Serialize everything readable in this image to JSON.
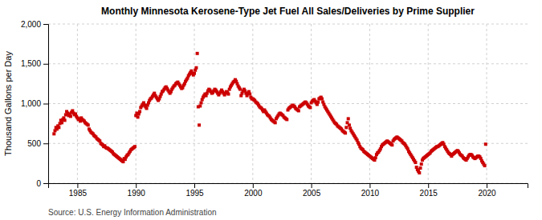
{
  "chart_data": {
    "type": "scatter",
    "title": "Monthly Minnesota Kerosene-Type Jet Fuel All Sales/Deliveries by Prime Supplier",
    "ylabel": "Thousand Gallons per Day",
    "source": "Source: U.S. Energy Information Administration",
    "color": "#cc0000",
    "marker": "square",
    "grid": true,
    "ylim": [
      0,
      2000
    ],
    "yticks": [
      0,
      500,
      {
        "value": 1000,
        "label": "1,000"
      },
      {
        "value": 1500,
        "label": "1,500"
      },
      {
        "value": 2000,
        "label": "2,000"
      }
    ],
    "xlim": [
      1982.5,
      2023.5
    ],
    "xticks": [
      1985,
      1990,
      1995,
      2000,
      2005,
      2010,
      2015,
      2020
    ],
    "x": [
      1983,
      1983.0833333333333,
      1983.1666666666667,
      1983.25,
      1983.3333333333333,
      1983.4166666666667,
      1983.5,
      1983.5833333333333,
      1983.6666666666667,
      1983.75,
      1983.8333333333333,
      1983.9166666666667,
      1984,
      1984.0833333333333,
      1984.1666666666667,
      1984.25,
      1984.3333333333333,
      1984.4166666666667,
      1984.5,
      1984.5833333333333,
      1984.6666666666667,
      1984.75,
      1984.8333333333333,
      1984.9166666666667,
      1985,
      1985.0833333333333,
      1985.1666666666667,
      1985.25,
      1985.3333333333333,
      1985.4166666666667,
      1985.5,
      1985.5833333333333,
      1985.6666666666667,
      1985.75,
      1985.8333333333333,
      1985.9166666666667,
      1986,
      1986.0833333333333,
      1986.1666666666667,
      1986.25,
      1986.3333333333333,
      1986.4166666666667,
      1986.5,
      1986.5833333333333,
      1986.6666666666667,
      1986.75,
      1986.8333333333333,
      1986.9166666666667,
      1987,
      1987.0833333333333,
      1987.1666666666667,
      1987.25,
      1987.3333333333333,
      1987.4166666666667,
      1987.5,
      1987.5833333333333,
      1987.6666666666667,
      1987.75,
      1987.8333333333333,
      1987.9166666666667,
      1988,
      1988.0833333333333,
      1988.1666666666667,
      1988.25,
      1988.3333333333333,
      1988.4166666666667,
      1988.5,
      1988.5833333333333,
      1988.6666666666667,
      1988.75,
      1988.8333333333333,
      1988.9166666666667,
      1989,
      1989.0833333333333,
      1989.1666666666667,
      1989.25,
      1989.3333333333333,
      1989.4166666666667,
      1989.5,
      1989.5833333333333,
      1989.6666666666667,
      1989.75,
      1989.8333333333333,
      1989.9166666666667,
      1990,
      1990.0833333333333,
      1990.1666666666667,
      1990.25,
      1990.3333333333333,
      1990.4166666666667,
      1990.5,
      1990.5833333333333,
      1990.6666666666667,
      1990.75,
      1990.8333333333333,
      1990.9166666666667,
      1991,
      1991.0833333333333,
      1991.1666666666667,
      1991.25,
      1991.3333333333333,
      1991.4166666666667,
      1991.5,
      1991.5833333333333,
      1991.6666666666667,
      1991.75,
      1991.8333333333333,
      1991.9166666666667,
      1992,
      1992.0833333333333,
      1992.1666666666667,
      1992.25,
      1992.3333333333333,
      1992.4166666666667,
      1992.5,
      1992.5833333333333,
      1992.6666666666667,
      1992.75,
      1992.8333333333333,
      1992.9166666666667,
      1993,
      1993.0833333333333,
      1993.1666666666667,
      1993.25,
      1993.3333333333333,
      1993.4166666666667,
      1993.5,
      1993.5833333333333,
      1993.6666666666667,
      1993.75,
      1993.8333333333333,
      1993.9166666666667,
      1994,
      1994.0833333333333,
      1994.1666666666667,
      1994.25,
      1994.3333333333333,
      1994.4166666666667,
      1994.5,
      1994.5833333333333,
      1994.6666666666667,
      1994.75,
      1994.8333333333333,
      1994.9166666666667,
      1995,
      1995.0833333333333,
      1995.1666666666667,
      1995.25,
      1995.3333333333333,
      1995.4166666666667,
      1995.5,
      1995.5833333333333,
      1995.6666666666667,
      1995.75,
      1995.8333333333333,
      1995.9166666666667,
      1996,
      1996.0833333333333,
      1996.1666666666667,
      1996.25,
      1996.3333333333333,
      1996.4166666666667,
      1996.5,
      1996.5833333333333,
      1996.6666666666667,
      1996.75,
      1996.8333333333333,
      1996.9166666666667,
      1997,
      1997.0833333333333,
      1997.1666666666667,
      1997.25,
      1997.3333333333333,
      1997.4166666666667,
      1997.5,
      1997.5833333333333,
      1997.6666666666667,
      1997.75,
      1997.8333333333333,
      1997.9166666666667,
      1998,
      1998.0833333333333,
      1998.1666666666667,
      1998.25,
      1998.3333333333333,
      1998.4166666666667,
      1998.5,
      1998.5833333333333,
      1998.6666666666667,
      1998.75,
      1998.8333333333333,
      1998.9166666666667,
      1999,
      1999.0833333333333,
      1999.1666666666667,
      1999.25,
      1999.3333333333333,
      1999.4166666666667,
      1999.5,
      1999.5833333333333,
      1999.6666666666667,
      1999.75,
      1999.8333333333333,
      1999.9166666666667,
      2000,
      2000.0833333333333,
      2000.1666666666667,
      2000.25,
      2000.3333333333333,
      2000.4166666666667,
      2000.5,
      2000.5833333333333,
      2000.6666666666667,
      2000.75,
      2000.8333333333333,
      2000.9166666666667,
      2001,
      2001.0833333333333,
      2001.1666666666667,
      2001.25,
      2001.3333333333333,
      2001.4166666666667,
      2001.5,
      2001.5833333333333,
      2001.6666666666667,
      2001.75,
      2001.8333333333333,
      2001.9166666666667,
      2002,
      2002.0833333333333,
      2002.1666666666667,
      2002.25,
      2002.3333333333333,
      2002.4166666666667,
      2002.5,
      2002.5833333333333,
      2002.6666666666667,
      2002.75,
      2002.8333333333333,
      2002.9166666666667,
      2003,
      2003.0833333333333,
      2003.1666666666667,
      2003.25,
      2003.3333333333333,
      2003.4166666666667,
      2003.5,
      2003.5833333333333,
      2003.6666666666667,
      2003.75,
      2003.8333333333333,
      2003.9166666666667,
      2004,
      2004.0833333333333,
      2004.1666666666667,
      2004.25,
      2004.3333333333333,
      2004.4166666666667,
      2004.5,
      2004.5833333333333,
      2004.6666666666667,
      2004.75,
      2004.8333333333333,
      2004.9166666666667,
      2005,
      2005.0833333333333,
      2005.1666666666667,
      2005.25,
      2005.3333333333333,
      2005.4166666666667,
      2005.5,
      2005.5833333333333,
      2005.6666666666667,
      2005.75,
      2005.8333333333333,
      2005.9166666666667,
      2006,
      2006.0833333333333,
      2006.1666666666667,
      2006.25,
      2006.3333333333333,
      2006.4166666666667,
      2006.5,
      2006.5833333333333,
      2006.6666666666667,
      2006.75,
      2006.8333333333333,
      2006.9166666666667,
      2007,
      2007.0833333333333,
      2007.1666666666667,
      2007.25,
      2007.3333333333333,
      2007.4166666666667,
      2007.5,
      2007.5833333333333,
      2007.6666666666667,
      2007.75,
      2007.8333333333333,
      2007.9166666666667,
      2008,
      2008.0833333333333,
      2008.1666666666667,
      2008.25,
      2008.3333333333333,
      2008.4166666666667,
      2008.5,
      2008.5833333333333,
      2008.6666666666667,
      2008.75,
      2008.8333333333333,
      2008.9166666666667,
      2009,
      2009.0833333333333,
      2009.1666666666667,
      2009.25,
      2009.3333333333333,
      2009.4166666666667,
      2009.5,
      2009.5833333333333,
      2009.6666666666667,
      2009.75,
      2009.8333333333333,
      2009.9166666666667,
      2010,
      2010.0833333333333,
      2010.1666666666667,
      2010.25,
      2010.3333333333333,
      2010.4166666666667,
      2010.5,
      2010.5833333333333,
      2010.6666666666667,
      2010.75,
      2010.8333333333333,
      2010.9166666666667,
      2011,
      2011.0833333333333,
      2011.1666666666667,
      2011.25,
      2011.3333333333333,
      2011.4166666666667,
      2011.5,
      2011.5833333333333,
      2011.6666666666667,
      2011.75,
      2011.8333333333333,
      2011.9166666666667,
      2012,
      2012.0833333333333,
      2012.1666666666667,
      2012.25,
      2012.3333333333333,
      2012.4166666666667,
      2012.5,
      2012.5833333333333,
      2012.6666666666667,
      2012.75,
      2012.8333333333333,
      2012.9166666666667,
      2013,
      2013.0833333333333,
      2013.1666666666667,
      2013.25,
      2013.3333333333333,
      2013.4166666666667,
      2013.5,
      2013.5833333333333,
      2013.6666666666667,
      2013.75,
      2013.8333333333333,
      2013.9166666666667,
      2014,
      2014.0833333333333,
      2014.1666666666667,
      2014.25,
      2014.3333333333333,
      2014.4166666666667,
      2014.5,
      2014.5833333333333,
      2014.6666666666667,
      2014.75,
      2014.8333333333333,
      2014.9166666666667,
      2015,
      2015.0833333333333,
      2015.1666666666667,
      2015.25,
      2015.3333333333333,
      2015.4166666666667,
      2015.5,
      2015.5833333333333,
      2015.6666666666667,
      2015.75,
      2015.8333333333333,
      2015.9166666666667,
      2016,
      2016.0833333333333,
      2016.1666666666667,
      2016.25,
      2016.3333333333333,
      2016.4166666666667,
      2016.5,
      2016.5833333333333,
      2016.6666666666667,
      2016.75,
      2016.8333333333333,
      2016.9166666666667,
      2017,
      2017.0833333333333,
      2017.1666666666667,
      2017.25,
      2017.3333333333333,
      2017.4166666666667,
      2017.5,
      2017.5833333333333,
      2017.6666666666667,
      2017.75,
      2017.8333333333333,
      2017.9166666666667,
      2018,
      2018.0833333333333,
      2018.1666666666667,
      2018.25,
      2018.3333333333333,
      2018.4166666666667,
      2018.5,
      2018.5833333333333,
      2018.6666666666667,
      2018.75,
      2018.8333333333333,
      2018.9166666666667,
      2019,
      2019.0833333333333,
      2019.1666666666667,
      2019.25,
      2019.3333333333333,
      2019.4166666666667,
      2019.5,
      2019.5833333333333,
      2019.6666666666667,
      2019.75,
      2019.8333333333333,
      2019.9166666666667
    ],
    "values": [
      620,
      660,
      700,
      680,
      720,
      700,
      750,
      790,
      760,
      800,
      820,
      790,
      860,
      900,
      880,
      850,
      870,
      840,
      890,
      910,
      880,
      860,
      870,
      840,
      820,
      800,
      810,
      780,
      820,
      800,
      790,
      780,
      760,
      750,
      740,
      730,
      680,
      660,
      640,
      630,
      620,
      600,
      590,
      580,
      560,
      550,
      540,
      530,
      500,
      490,
      480,
      460,
      470,
      450,
      440,
      440,
      430,
      420,
      410,
      400,
      390,
      370,
      360,
      350,
      340,
      330,
      320,
      310,
      300,
      290,
      280,
      270,
      310,
      300,
      330,
      350,
      360,
      380,
      400,
      420,
      430,
      440,
      450,
      460,
      850,
      880,
      830,
      870,
      900,
      950,
      970,
      990,
      1010,
      980,
      960,
      940,
      980,
      1010,
      1040,
      1060,
      1070,
      1090,
      1110,
      1130,
      1100,
      1080,
      1060,
      1040,
      1060,
      1090,
      1120,
      1150,
      1160,
      1180,
      1200,
      1210,
      1190,
      1170,
      1150,
      1130,
      1150,
      1180,
      1200,
      1220,
      1230,
      1250,
      1260,
      1270,
      1250,
      1230,
      1210,
      1190,
      1200,
      1230,
      1250,
      1280,
      1300,
      1320,
      1350,
      1370,
      1390,
      1410,
      1380,
      1360,
      1380,
      1420,
      1450,
      1630,
      960,
      730,
      970,
      1010,
      1050,
      1080,
      1100,
      1120,
      1100,
      1130,
      1160,
      1180,
      1170,
      1150,
      1130,
      1140,
      1160,
      1180,
      1170,
      1150,
      1130,
      1110,
      1130,
      1150,
      1170,
      1150,
      1130,
      1110,
      1130,
      1150,
      1140,
      1120,
      1180,
      1210,
      1230,
      1250,
      1270,
      1280,
      1300,
      1280,
      1250,
      1220,
      1200,
      1180,
      1100,
      1130,
      1160,
      1180,
      1160,
      1130,
      1100,
      1130,
      1150,
      1120,
      1080,
      1060,
      1060,
      1050,
      1040,
      1020,
      1010,
      1000,
      980,
      960,
      950,
      940,
      920,
      900,
      920,
      900,
      880,
      860,
      850,
      840,
      820,
      800,
      790,
      780,
      770,
      760,
      810,
      830,
      850,
      870,
      880,
      870,
      860,
      850,
      830,
      820,
      810,
      800,
      920,
      940,
      950,
      960,
      970,
      980,
      970,
      960,
      940,
      930,
      920,
      910,
      960,
      970,
      980,
      990,
      1000,
      1010,
      1020,
      1010,
      990,
      970,
      960,
      950,
      1010,
      1030,
      1040,
      1050,
      1030,
      1010,
      990,
      1020,
      1060,
      1070,
      1080,
      1060,
      1020,
      990,
      960,
      940,
      920,
      900,
      880,
      860,
      840,
      820,
      800,
      780,
      760,
      750,
      740,
      720,
      710,
      700,
      690,
      680,
      660,
      650,
      640,
      630,
      700,
      760,
      810,
      730,
      690,
      660,
      640,
      620,
      600,
      580,
      560,
      540,
      510,
      490,
      460,
      440,
      430,
      420,
      400,
      390,
      380,
      370,
      360,
      350,
      340,
      330,
      320,
      310,
      300,
      290,
      320,
      360,
      380,
      390,
      410,
      430,
      460,
      480,
      490,
      500,
      510,
      520,
      530,
      520,
      510,
      500,
      490,
      480,
      530,
      550,
      560,
      570,
      580,
      570,
      560,
      550,
      540,
      530,
      510,
      500,
      490,
      470,
      450,
      430,
      400,
      380,
      360,
      340,
      320,
      300,
      280,
      260,
      200,
      170,
      150,
      130,
      190,
      240,
      290,
      310,
      320,
      330,
      340,
      350,
      360,
      370,
      380,
      400,
      410,
      420,
      430,
      440,
      450,
      460,
      460,
      470,
      480,
      490,
      500,
      510,
      490,
      460,
      440,
      420,
      400,
      380,
      370,
      360,
      340,
      360,
      370,
      380,
      390,
      400,
      410,
      400,
      380,
      360,
      350,
      340,
      320,
      310,
      300,
      290,
      310,
      330,
      350,
      360,
      360,
      350,
      330,
      320,
      310,
      320,
      330,
      340,
      340,
      330,
      310,
      280,
      260,
      240,
      220,
      490
    ]
  }
}
